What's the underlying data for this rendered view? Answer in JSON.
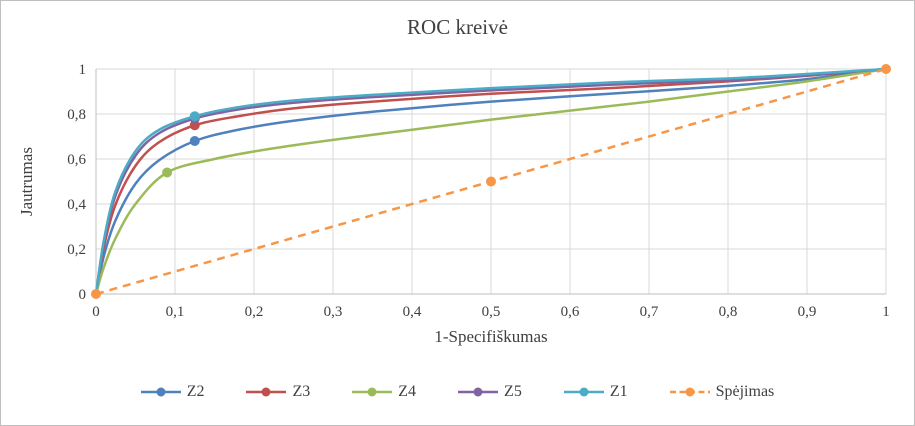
{
  "chart_data": {
    "type": "line",
    "title": "ROC kreivė",
    "xlabel": "1-Specifiškumas",
    "ylabel": "Jautrumas",
    "xlim": [
      0,
      1
    ],
    "ylim": [
      0,
      1
    ],
    "grid": true,
    "legend_position": "bottom",
    "x_ticks": [
      {
        "v": 0,
        "label": "0"
      },
      {
        "v": 0.1,
        "label": "0,1"
      },
      {
        "v": 0.2,
        "label": "0,2"
      },
      {
        "v": 0.3,
        "label": "0,3"
      },
      {
        "v": 0.4,
        "label": "0,4"
      },
      {
        "v": 0.5,
        "label": "0,5"
      },
      {
        "v": 0.6,
        "label": "0,6"
      },
      {
        "v": 0.7,
        "label": "0,7"
      },
      {
        "v": 0.8,
        "label": "0,8"
      },
      {
        "v": 0.9,
        "label": "0,9"
      },
      {
        "v": 1,
        "label": "1"
      }
    ],
    "y_ticks": [
      {
        "v": 0,
        "label": "0"
      },
      {
        "v": 0.2,
        "label": "0,2"
      },
      {
        "v": 0.4,
        "label": "0,4"
      },
      {
        "v": 0.6,
        "label": "0,6"
      },
      {
        "v": 0.8,
        "label": "0,8"
      },
      {
        "v": 1,
        "label": "1"
      }
    ],
    "colors": {
      "gridline": "#d9d9d9",
      "axis": "#bfbfbf",
      "text": "#404040"
    },
    "series": [
      {
        "name": "Z2",
        "color": "#4f81bd",
        "dashed": false,
        "points": [
          [
            0,
            0
          ],
          [
            0.01,
            0.17
          ],
          [
            0.025,
            0.33
          ],
          [
            0.05,
            0.49
          ],
          [
            0.08,
            0.595
          ],
          [
            0.125,
            0.68
          ],
          [
            0.18,
            0.73
          ],
          [
            0.25,
            0.77
          ],
          [
            0.35,
            0.81
          ],
          [
            0.5,
            0.855
          ],
          [
            0.65,
            0.89
          ],
          [
            0.8,
            0.925
          ],
          [
            0.9,
            0.955
          ],
          [
            1,
            1
          ]
        ],
        "markers": [
          [
            0.125,
            0.68
          ]
        ]
      },
      {
        "name": "Z3",
        "color": "#c0504d",
        "dashed": false,
        "points": [
          [
            0,
            0
          ],
          [
            0.01,
            0.21
          ],
          [
            0.025,
            0.4
          ],
          [
            0.05,
            0.57
          ],
          [
            0.08,
            0.675
          ],
          [
            0.125,
            0.75
          ],
          [
            0.18,
            0.79
          ],
          [
            0.25,
            0.825
          ],
          [
            0.35,
            0.855
          ],
          [
            0.5,
            0.89
          ],
          [
            0.65,
            0.915
          ],
          [
            0.8,
            0.945
          ],
          [
            0.9,
            0.97
          ],
          [
            1,
            1
          ]
        ],
        "markers": [
          [
            0.125,
            0.75
          ]
        ]
      },
      {
        "name": "Z4",
        "color": "#9bbb59",
        "dashed": false,
        "points": [
          [
            0,
            0
          ],
          [
            0.01,
            0.12
          ],
          [
            0.025,
            0.25
          ],
          [
            0.05,
            0.4
          ],
          [
            0.09,
            0.54
          ],
          [
            0.15,
            0.6
          ],
          [
            0.22,
            0.645
          ],
          [
            0.3,
            0.685
          ],
          [
            0.4,
            0.73
          ],
          [
            0.5,
            0.775
          ],
          [
            0.6,
            0.815
          ],
          [
            0.7,
            0.855
          ],
          [
            0.8,
            0.9
          ],
          [
            0.9,
            0.945
          ],
          [
            1,
            1
          ]
        ],
        "markers": [
          [
            0.09,
            0.54
          ]
        ]
      },
      {
        "name": "Z5",
        "color": "#8064a2",
        "dashed": false,
        "points": [
          [
            0,
            0
          ],
          [
            0.01,
            0.23
          ],
          [
            0.025,
            0.44
          ],
          [
            0.05,
            0.615
          ],
          [
            0.08,
            0.715
          ],
          [
            0.125,
            0.78
          ],
          [
            0.18,
            0.82
          ],
          [
            0.25,
            0.85
          ],
          [
            0.35,
            0.875
          ],
          [
            0.5,
            0.905
          ],
          [
            0.65,
            0.93
          ],
          [
            0.8,
            0.95
          ],
          [
            0.9,
            0.972
          ],
          [
            1,
            1
          ]
        ],
        "markers": [
          [
            0.125,
            0.78
          ]
        ]
      },
      {
        "name": "Z1",
        "color": "#4bacc6",
        "dashed": false,
        "points": [
          [
            0,
            0
          ],
          [
            0.01,
            0.24
          ],
          [
            0.025,
            0.46
          ],
          [
            0.05,
            0.635
          ],
          [
            0.08,
            0.73
          ],
          [
            0.125,
            0.79
          ],
          [
            0.18,
            0.83
          ],
          [
            0.25,
            0.86
          ],
          [
            0.35,
            0.885
          ],
          [
            0.5,
            0.915
          ],
          [
            0.65,
            0.94
          ],
          [
            0.8,
            0.958
          ],
          [
            0.9,
            0.978
          ],
          [
            1,
            1
          ]
        ],
        "markers": [
          [
            0.125,
            0.79
          ]
        ]
      },
      {
        "name": "Spėjimas",
        "color": "#f79646",
        "dashed": true,
        "points": [
          [
            0,
            0
          ],
          [
            0.5,
            0.5
          ],
          [
            1,
            1
          ]
        ],
        "markers": [
          [
            0,
            0
          ],
          [
            0.5,
            0.5
          ],
          [
            1,
            1
          ]
        ]
      }
    ]
  }
}
